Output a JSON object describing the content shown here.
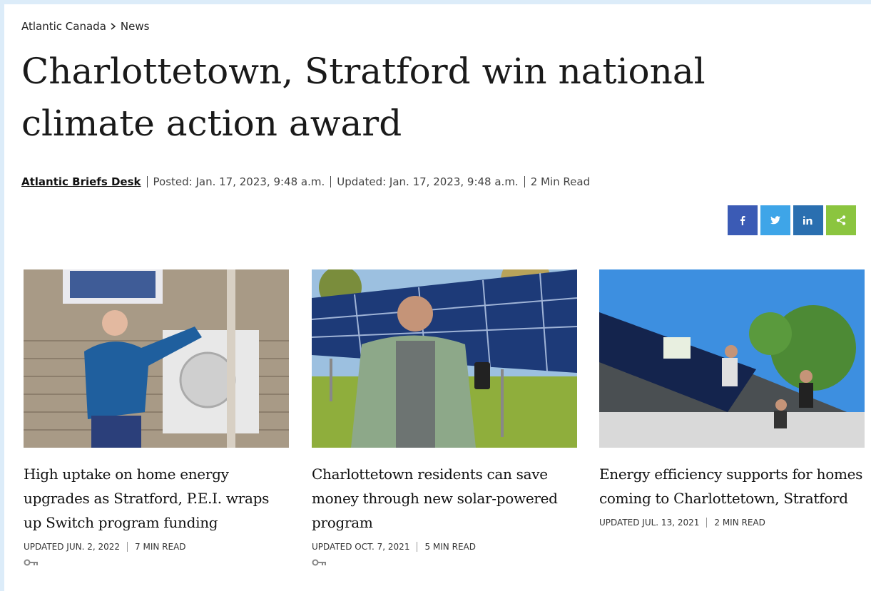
{
  "breadcrumb": [
    "Atlantic Canada",
    "News"
  ],
  "title": "Charlottetown, Stratford win national climate action award",
  "byline": {
    "author": "Atlantic Briefs Desk",
    "posted": "Posted: Jan. 17, 2023, 9:48 a.m.",
    "updated": "Updated: Jan. 17, 2023, 9:48 a.m.",
    "read_time": "2 Min Read"
  },
  "cards": [
    {
      "headline": "High uptake on home energy upgrades as Stratford, P.E.I. wraps up Switch program funding",
      "updated": "UPDATED JUN. 2, 2022",
      "read_time": "7 MIN READ"
    },
    {
      "headline": "Charlottetown residents can save money through new solar-powered program",
      "updated": "UPDATED OCT. 7, 2021",
      "read_time": "5 MIN READ"
    },
    {
      "headline": "Energy efficiency supports for homes coming to Charlottetown, Stratford",
      "updated": "UPDATED JUL. 13, 2021",
      "read_time": "2 MIN READ"
    }
  ]
}
